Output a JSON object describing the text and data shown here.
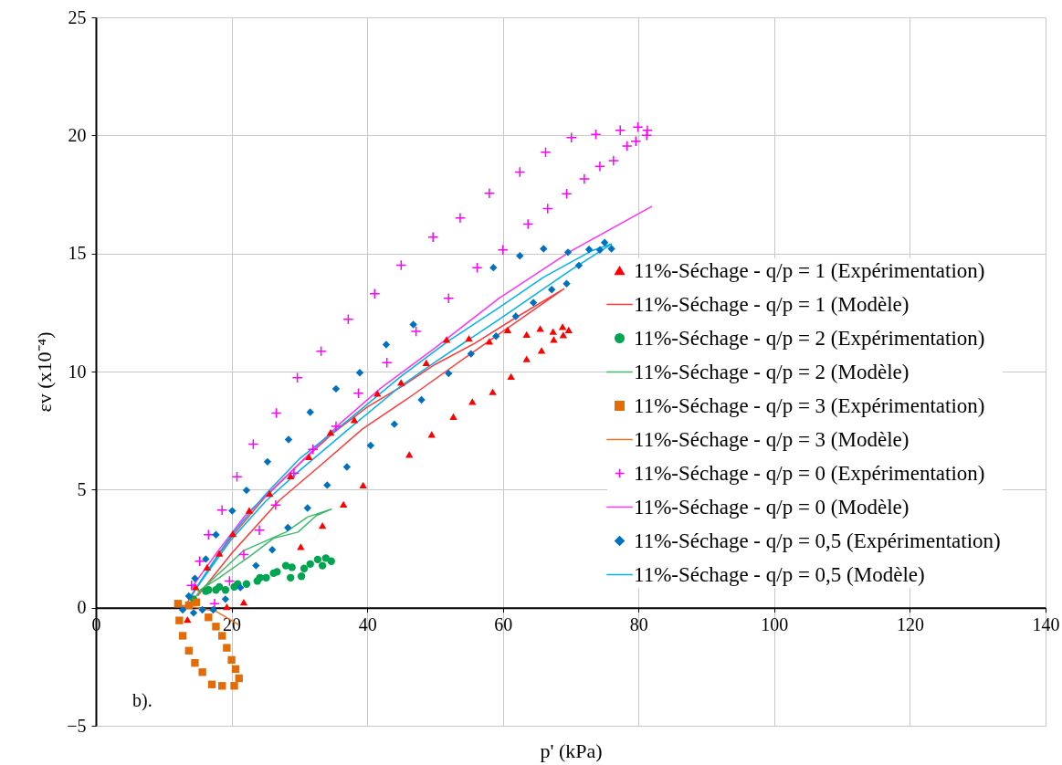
{
  "chart_data": {
    "type": "scatter",
    "xlabel": "p' (kPa)",
    "ylabel": "εv (x10⁻⁴)",
    "xlim": [
      0,
      140
    ],
    "ylim": [
      -5,
      25
    ],
    "xticks": [
      0,
      20,
      40,
      60,
      80,
      100,
      120,
      140
    ],
    "yticks": [
      -5,
      0,
      5,
      10,
      15,
      20,
      25
    ],
    "grid": true,
    "legend": "right",
    "annotations": [
      "b)."
    ],
    "series": [
      {
        "name": "11%-Séchage - q/p = 1 (Expérimentation)",
        "type": "scatter",
        "marker": "triangle",
        "color": "#ff0000",
        "x": [
          14.7,
          16.4,
          18.2,
          20.2,
          22.6,
          25.6,
          28.7,
          31.4,
          34.6,
          38.1,
          41.5,
          45,
          48.7,
          51.7,
          55,
          58,
          60.7,
          63.5,
          65.5,
          67.4,
          68.8,
          69.7,
          68.9,
          67.5,
          65.7,
          63.5,
          61.2,
          58.5,
          55.5,
          52.7,
          49.5,
          46.2,
          39.4,
          36.5,
          33.4,
          30.2,
          21.8,
          19.3,
          13.5
        ],
        "values": [
          0.88,
          1.71,
          2.3,
          3.13,
          4.12,
          4.83,
          5.58,
          6.39,
          7.42,
          7.96,
          9.08,
          9.54,
          10.37,
          11.36,
          11.41,
          11.28,
          11.76,
          11.57,
          11.82,
          11.7,
          11.9,
          11.76,
          11.55,
          11.36,
          10.89,
          10.54,
          9.79,
          9.14,
          8.73,
          8.09,
          7.34,
          6.49,
          5.19,
          4.38,
          3.48,
          2.58,
          0.23,
          0.04,
          -0.5
        ]
      },
      {
        "name": "11%-Séchage - q/p = 1 (Modèle)",
        "type": "line",
        "color": "#ff3b3b",
        "x": [
          13,
          17,
          20,
          25,
          30,
          35,
          40,
          45.5,
          50,
          55.9,
          62,
          69,
          62,
          55,
          46,
          39.3,
          33,
          27.1,
          20,
          15
        ],
        "values": [
          0,
          1.8,
          3.0,
          4.7,
          6.1,
          7.4,
          8.5,
          9.44,
          10.3,
          11.2,
          12.3,
          13.5,
          12.1,
          10.7,
          8.86,
          7.57,
          6.0,
          4.56,
          2.3,
          0.5
        ]
      },
      {
        "name": "11%-Séchage - q/p = 2 (Expérimentation)",
        "type": "scatter",
        "marker": "circle",
        "color": "#00a550",
        "x": [
          14.4,
          16.2,
          17.7,
          19.1,
          20.4,
          22.2,
          23.8,
          25.1,
          26.7,
          28,
          28.7,
          30.3,
          30.7,
          31.6,
          32.7,
          33.9,
          34.7,
          33.4,
          28.9,
          26.2,
          24.2,
          20.9,
          18.2,
          16.6
        ],
        "values": [
          0.36,
          0.7,
          0.75,
          0.75,
          0.88,
          1.0,
          1.13,
          1.27,
          1.52,
          1.78,
          1.27,
          1.33,
          1.66,
          1.85,
          2.04,
          2.1,
          1.97,
          1.78,
          1.71,
          1.46,
          1.27,
          1.0,
          0.88,
          0.75
        ]
      },
      {
        "name": "11%-Séchage - q/p = 2 (Modèle)",
        "type": "line",
        "color": "#3cba6a",
        "x": [
          14.5,
          15.5,
          21.8,
          28,
          31.2,
          34.7,
          32.5,
          29.8,
          26.2,
          22.6,
          18.2,
          15
        ],
        "values": [
          0.4,
          0.75,
          2.42,
          3.2,
          3.84,
          4.17,
          3.9,
          3.2,
          2.94,
          2.16,
          1.27,
          0.69
        ]
      },
      {
        "name": "11%-Séchage - q/p = 3 (Expérimentation)",
        "type": "scatter",
        "marker": "square",
        "color": "#e36c09",
        "x": [
          12.1,
          12.3,
          12.8,
          13.7,
          14.6,
          15.7,
          17.1,
          18.6,
          20.4,
          21.1,
          20.6,
          20,
          19.3,
          18.6,
          17.7,
          16.6,
          14.8,
          13.7
        ],
        "values": [
          0.17,
          -0.54,
          -1.19,
          -1.82,
          -2.34,
          -2.73,
          -3.25,
          -3.31,
          -3.31,
          -2.99,
          -2.6,
          -2.21,
          -1.7,
          -1.19,
          -0.8,
          -0.41,
          0.23,
          0.1
        ]
      },
      {
        "name": "11%-Séchage - q/p = 3 (Modèle)",
        "type": "line",
        "color": "#f07020",
        "x": [
          12.5,
          15,
          17.7,
          21.1
        ],
        "values": [
          0.1,
          0,
          -0.15,
          -0.73
        ]
      },
      {
        "name": "11%-Séchage - q/p = 0 (Expérimentation)",
        "type": "scatter",
        "marker": "cross",
        "color": "#ff00ff",
        "x": [
          14.1,
          15.3,
          16.6,
          18.6,
          20.8,
          23.2,
          26.6,
          29.7,
          33.2,
          37.2,
          41.1,
          45,
          49.7,
          53.7,
          58,
          62.5,
          66.3,
          70.1,
          73.7,
          77.3,
          79.9,
          81.3,
          81.2,
          79.6,
          78.3,
          76.3,
          74.3,
          72,
          69.4,
          66.6,
          63.7,
          60,
          56.2,
          52,
          47.2,
          42.9,
          38.7,
          35.4,
          32,
          29.2,
          26.5,
          24.1,
          21.8,
          19.7,
          17.5
        ],
        "values": [
          0.94,
          1.97,
          3.09,
          4.13,
          5.54,
          6.93,
          8.24,
          9.74,
          10.86,
          12.21,
          13.3,
          14.5,
          15.69,
          16.5,
          17.55,
          18.45,
          19.29,
          19.91,
          20.04,
          20.22,
          20.35,
          20.22,
          20.0,
          19.75,
          19.55,
          18.93,
          18.69,
          18.16,
          17.53,
          16.9,
          16.24,
          15.15,
          14.4,
          13.1,
          11.7,
          10.38,
          9.08,
          7.68,
          6.7,
          5.7,
          4.35,
          3.28,
          2.25,
          1.13,
          0.17
        ]
      },
      {
        "name": "11%-Séchage - q/p = 0 (Modèle)",
        "type": "line",
        "color": "#ff33ff",
        "x": [
          14,
          18,
          22,
          26,
          30,
          36,
          42,
          50,
          59.4,
          70,
          82
        ],
        "values": [
          0.8,
          2.4,
          3.9,
          5.0,
          6.1,
          7.8,
          9.3,
          11.0,
          13.1,
          15.1,
          17
        ]
      },
      {
        "name": "11%-Séchage - q/p = 0,5 (Expérimentation)",
        "type": "scatter",
        "marker": "diamond",
        "color": "#0070c0",
        "x": [
          12.8,
          13.7,
          14.6,
          16.2,
          17.7,
          20.1,
          22.2,
          25.3,
          28.4,
          31.6,
          35.4,
          38.9,
          42.8,
          46.8,
          58.6,
          62.5,
          66,
          69.6,
          72.7,
          75,
          76,
          74.3,
          71.2,
          69.4,
          67.2,
          64.5,
          61.9,
          59,
          55.3,
          52,
          48,
          44,
          40.5,
          37,
          34.1,
          31.2,
          28.3,
          26,
          23.6,
          21.3,
          19.1,
          17.3,
          15.7,
          14.4
        ],
        "values": [
          -0.09,
          0.49,
          1.24,
          2.06,
          3.09,
          4.1,
          4.97,
          6.18,
          7.12,
          8.28,
          9.27,
          9.95,
          11.14,
          11.99,
          14.4,
          14.9,
          15.2,
          15.05,
          15.17,
          15.46,
          15.2,
          15.15,
          14.49,
          13.72,
          13.47,
          12.92,
          12.34,
          11.5,
          10.75,
          9.92,
          8.8,
          7.77,
          6.87,
          5.96,
          5.19,
          4.22,
          3.39,
          2.45,
          1.78,
          0.85,
          0.36,
          -0.09,
          -0.09,
          -0.22
        ]
      },
      {
        "name": "11%-Séchage - q/p = 0,5 (Modèle)",
        "type": "line",
        "color": "#00b0f0",
        "x": [
          14,
          20,
          25,
          30,
          37,
          45,
          52,
          59.4,
          66,
          73,
          76,
          70,
          59.4,
          50,
          45,
          37,
          30,
          25,
          20,
          15
        ],
        "values": [
          0.5,
          3.1,
          4.8,
          6.3,
          7.9,
          9.8,
          11.3,
          12.7,
          14.0,
          15.1,
          15.4,
          14.3,
          12.2,
          10.4,
          9.4,
          7.5,
          5.8,
          4.5,
          2.9,
          0.9
        ]
      }
    ]
  }
}
